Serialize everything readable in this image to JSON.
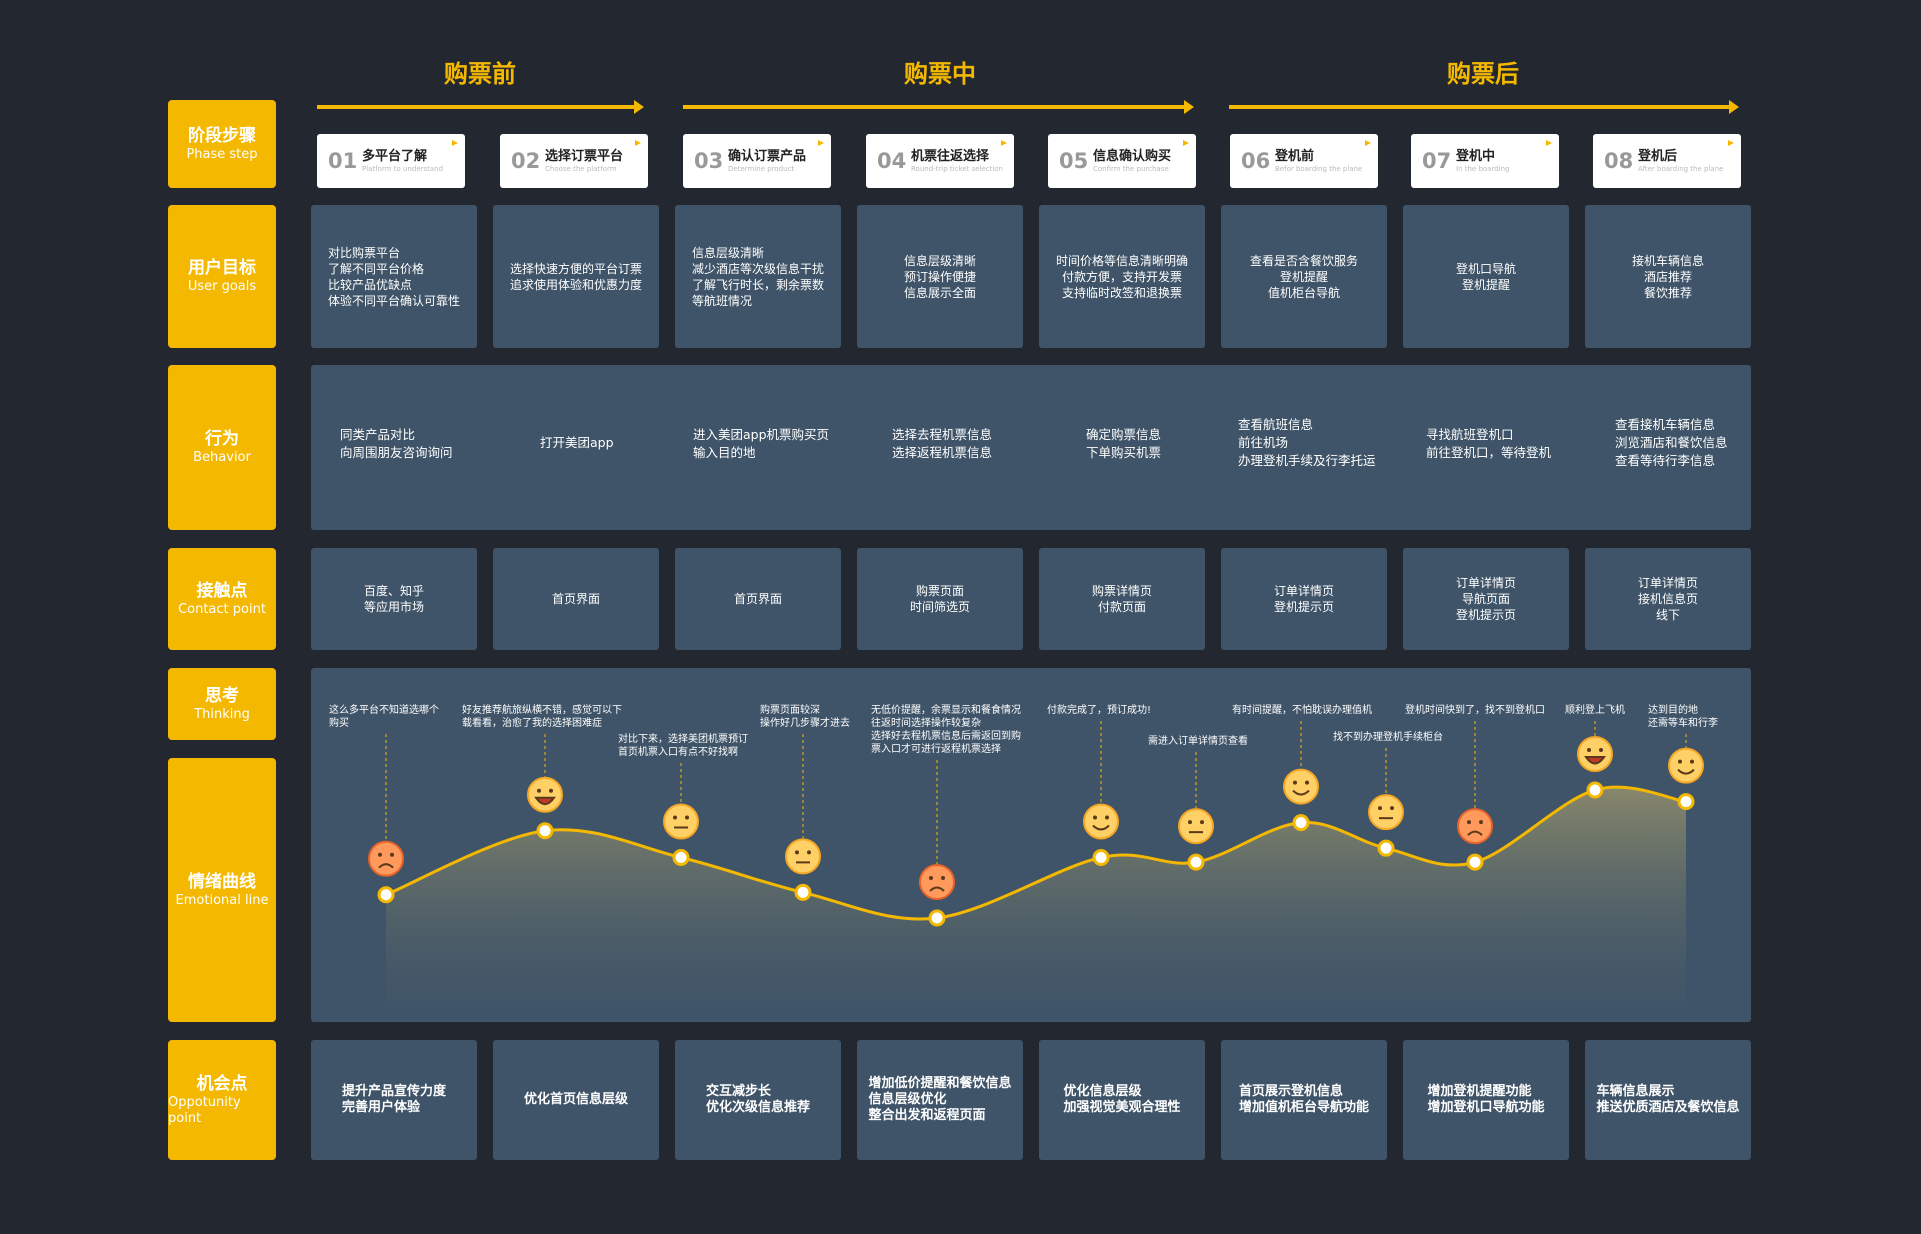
{
  "phases": [
    {
      "title": "购票前"
    },
    {
      "title": "购票中"
    },
    {
      "title": "购票后"
    }
  ],
  "row_labels": {
    "phase_step": {
      "zh": "阶段步骤",
      "en": "Phase step"
    },
    "user_goals": {
      "zh": "用户目标",
      "en": "User goals"
    },
    "behavior": {
      "zh": "行为",
      "en": "Behavior"
    },
    "contact_point": {
      "zh": "接触点",
      "en": "Contact point"
    },
    "thinking": {
      "zh": "思考",
      "en": "Thinking"
    },
    "emotional_line": {
      "zh": "情绪曲线",
      "en": "Emotional line"
    },
    "opportunity": {
      "zh": "机会点",
      "en": "Oppotunity point"
    }
  },
  "steps": [
    {
      "num": "01",
      "title": "多平台了解",
      "en": "Platform to understand"
    },
    {
      "num": "02",
      "title": "选择订票平台",
      "en": "Choose the platform"
    },
    {
      "num": "03",
      "title": "确认订票产品",
      "en": "Determine product"
    },
    {
      "num": "04",
      "title": "机票往返选择",
      "en": "Round-trip ticket selection"
    },
    {
      "num": "05",
      "title": "信息确认购买",
      "en": "Confirm the purchase"
    },
    {
      "num": "06",
      "title": "登机前",
      "en": "Befor boarding the plane"
    },
    {
      "num": "07",
      "title": "登机中",
      "en": "In the boarding"
    },
    {
      "num": "08",
      "title": "登机后",
      "en": "After boarding the plane"
    }
  ],
  "user_goals": [
    "对比购票平台\n了解不同平台价格\n比较产品优缺点\n体验不同平台确认可靠性",
    "选择快速方便的平台订票\n追求使用体验和优惠力度",
    "信息层级清晰\n减少酒店等次级信息干扰\n了解飞行时长，剩余票数\n等航班情况",
    "信息层级清晰\n预订操作便捷\n信息展示全面",
    "时间价格等信息清晰明确\n付款方便，支持开发票\n支持临时改签和退换票",
    "查看是否含餐饮服务\n登机提醒\n值机柜台导航",
    "登机口导航\n登机提醒",
    "接机车辆信息\n酒店推荐\n餐饮推荐"
  ],
  "behaviors": [
    "同类产品对比\n向周围朋友咨询询问",
    "打开美团app",
    "进入美团app机票购买页\n输入目的地",
    "选择去程机票信息\n选择返程机票信息",
    "确定购票信息\n下单购买机票",
    "查看航班信息\n前往机场\n办理登机手续及行李托运",
    "寻找航班登机口\n前往登机口，等待登机",
    "查看接机车辆信息\n浏览酒店和餐饮信息\n查看等待行李信息"
  ],
  "contact_points": [
    "百度、知乎\n等应用市场",
    "首页界面",
    "首页界面",
    "购票页面\n时间筛选页",
    "购票详情页\n付款页面",
    "订单详情页\n登机提示页",
    "订单详情页\n导航页面\n登机提示页",
    "订单详情页\n接机信息页\n线下"
  ],
  "thoughts": [
    "这么多平台不知道选哪个\n购买",
    "好友推荐航旅纵横不错，感觉可以下\n载看看，治愈了我的选择困难症",
    "对比下来，选择美团机票预订\n首页机票入口有点不好找啊",
    "购票页面较深\n操作好几步骤才进去",
    "无低价提醒，余票显示和餐食情况\n往返时间选择操作较复杂\n选择好去程机票信息后需返回到购\n票入口才可进行返程机票选择",
    "付款完成了，预订成功!",
    "需进入订单详情页查看",
    "有时间提醒，不怕耽误办理值机",
    "找不到办理登机手续柜台",
    "登机时间快到了，找不到登机口",
    "顺利登上飞机",
    "达到目的地\n还需等车和行李"
  ],
  "emotions": [
    {
      "mood": "sad",
      "y": 0.1
    },
    {
      "mood": "happy",
      "y": 0.65
    },
    {
      "mood": "neutral",
      "y": 0.42
    },
    {
      "mood": "neutral",
      "y": 0.12
    },
    {
      "mood": "sad",
      "y": -0.1
    },
    {
      "mood": "smile",
      "y": 0.42
    },
    {
      "mood": "neutral",
      "y": 0.38
    },
    {
      "mood": "smile",
      "y": 0.72
    },
    {
      "mood": "neutral",
      "y": 0.5
    },
    {
      "mood": "sad",
      "y": 0.38
    },
    {
      "mood": "happy",
      "y": 1.0
    },
    {
      "mood": "smile",
      "y": 0.9
    }
  ],
  "opportunities": [
    "提升产品宣传力度\n完善用户体验",
    "优化首页信息层级",
    "交互减步长\n优化次级信息推荐",
    "增加低价提醒和餐饮信息\n信息层级优化\n整合出发和返程页面",
    "优化信息层级\n加强视觉美观合理性",
    "首页展示登机信息\n增加值机柜台导航功能",
    "增加登机提醒功能\n增加登机口导航功能",
    "车辆信息展示\n推送优质酒店及餐饮信息"
  ],
  "colors": {
    "accent": "#f5b800",
    "cell": "#3f5468",
    "background": "#232830",
    "curve": "#f5b800"
  }
}
